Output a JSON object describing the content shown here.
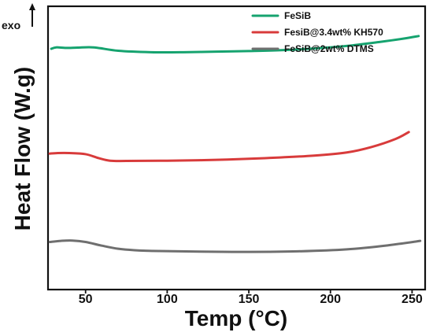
{
  "chart_data": {
    "type": "line",
    "title": "",
    "xlabel": "Temp (°C)",
    "ylabel": "Heat Flow (W.g)",
    "xlim": [
      27,
      258
    ],
    "ylim": [
      0,
      100
    ],
    "x_ticks": [
      50,
      100,
      150,
      200,
      250
    ],
    "x_tick_labels": [
      "50",
      "100",
      "150",
      "200",
      "250"
    ],
    "exo_label": "exo",
    "grid": false,
    "legend_position": "top-right",
    "series": [
      {
        "name": "FeSiB",
        "color": "#16a36f",
        "x": [
          29,
          32,
          38,
          45,
          55,
          70,
          90,
          110,
          130,
          150,
          170,
          190,
          210,
          230,
          245,
          254
        ],
        "y": [
          85.0,
          85.5,
          85.3,
          85.4,
          85.5,
          84.3,
          83.8,
          83.8,
          84.0,
          84.2,
          84.5,
          85.1,
          86.0,
          87.4,
          88.6,
          89.5
        ]
      },
      {
        "name": "FesiB@3.4wt% KH570",
        "color": "#d83b3b",
        "x": [
          28,
          33,
          40,
          50,
          58,
          65,
          75,
          100,
          130,
          160,
          190,
          210,
          225,
          240,
          248
        ],
        "y": [
          48.0,
          48.2,
          48.2,
          47.8,
          46.4,
          45.5,
          45.4,
          45.5,
          45.8,
          46.4,
          47.3,
          48.4,
          50.3,
          53.2,
          55.6
        ]
      },
      {
        "name": "FeSiB@2wt% DTMS",
        "color": "#6f6f6f",
        "x": [
          28,
          35,
          42,
          50,
          60,
          70,
          80,
          95,
          120,
          150,
          180,
          210,
          235,
          255
        ],
        "y": [
          16.8,
          17.2,
          17.3,
          16.8,
          15.5,
          14.4,
          13.9,
          13.6,
          13.4,
          13.3,
          13.5,
          14.2,
          15.6,
          17.2
        ]
      }
    ]
  }
}
